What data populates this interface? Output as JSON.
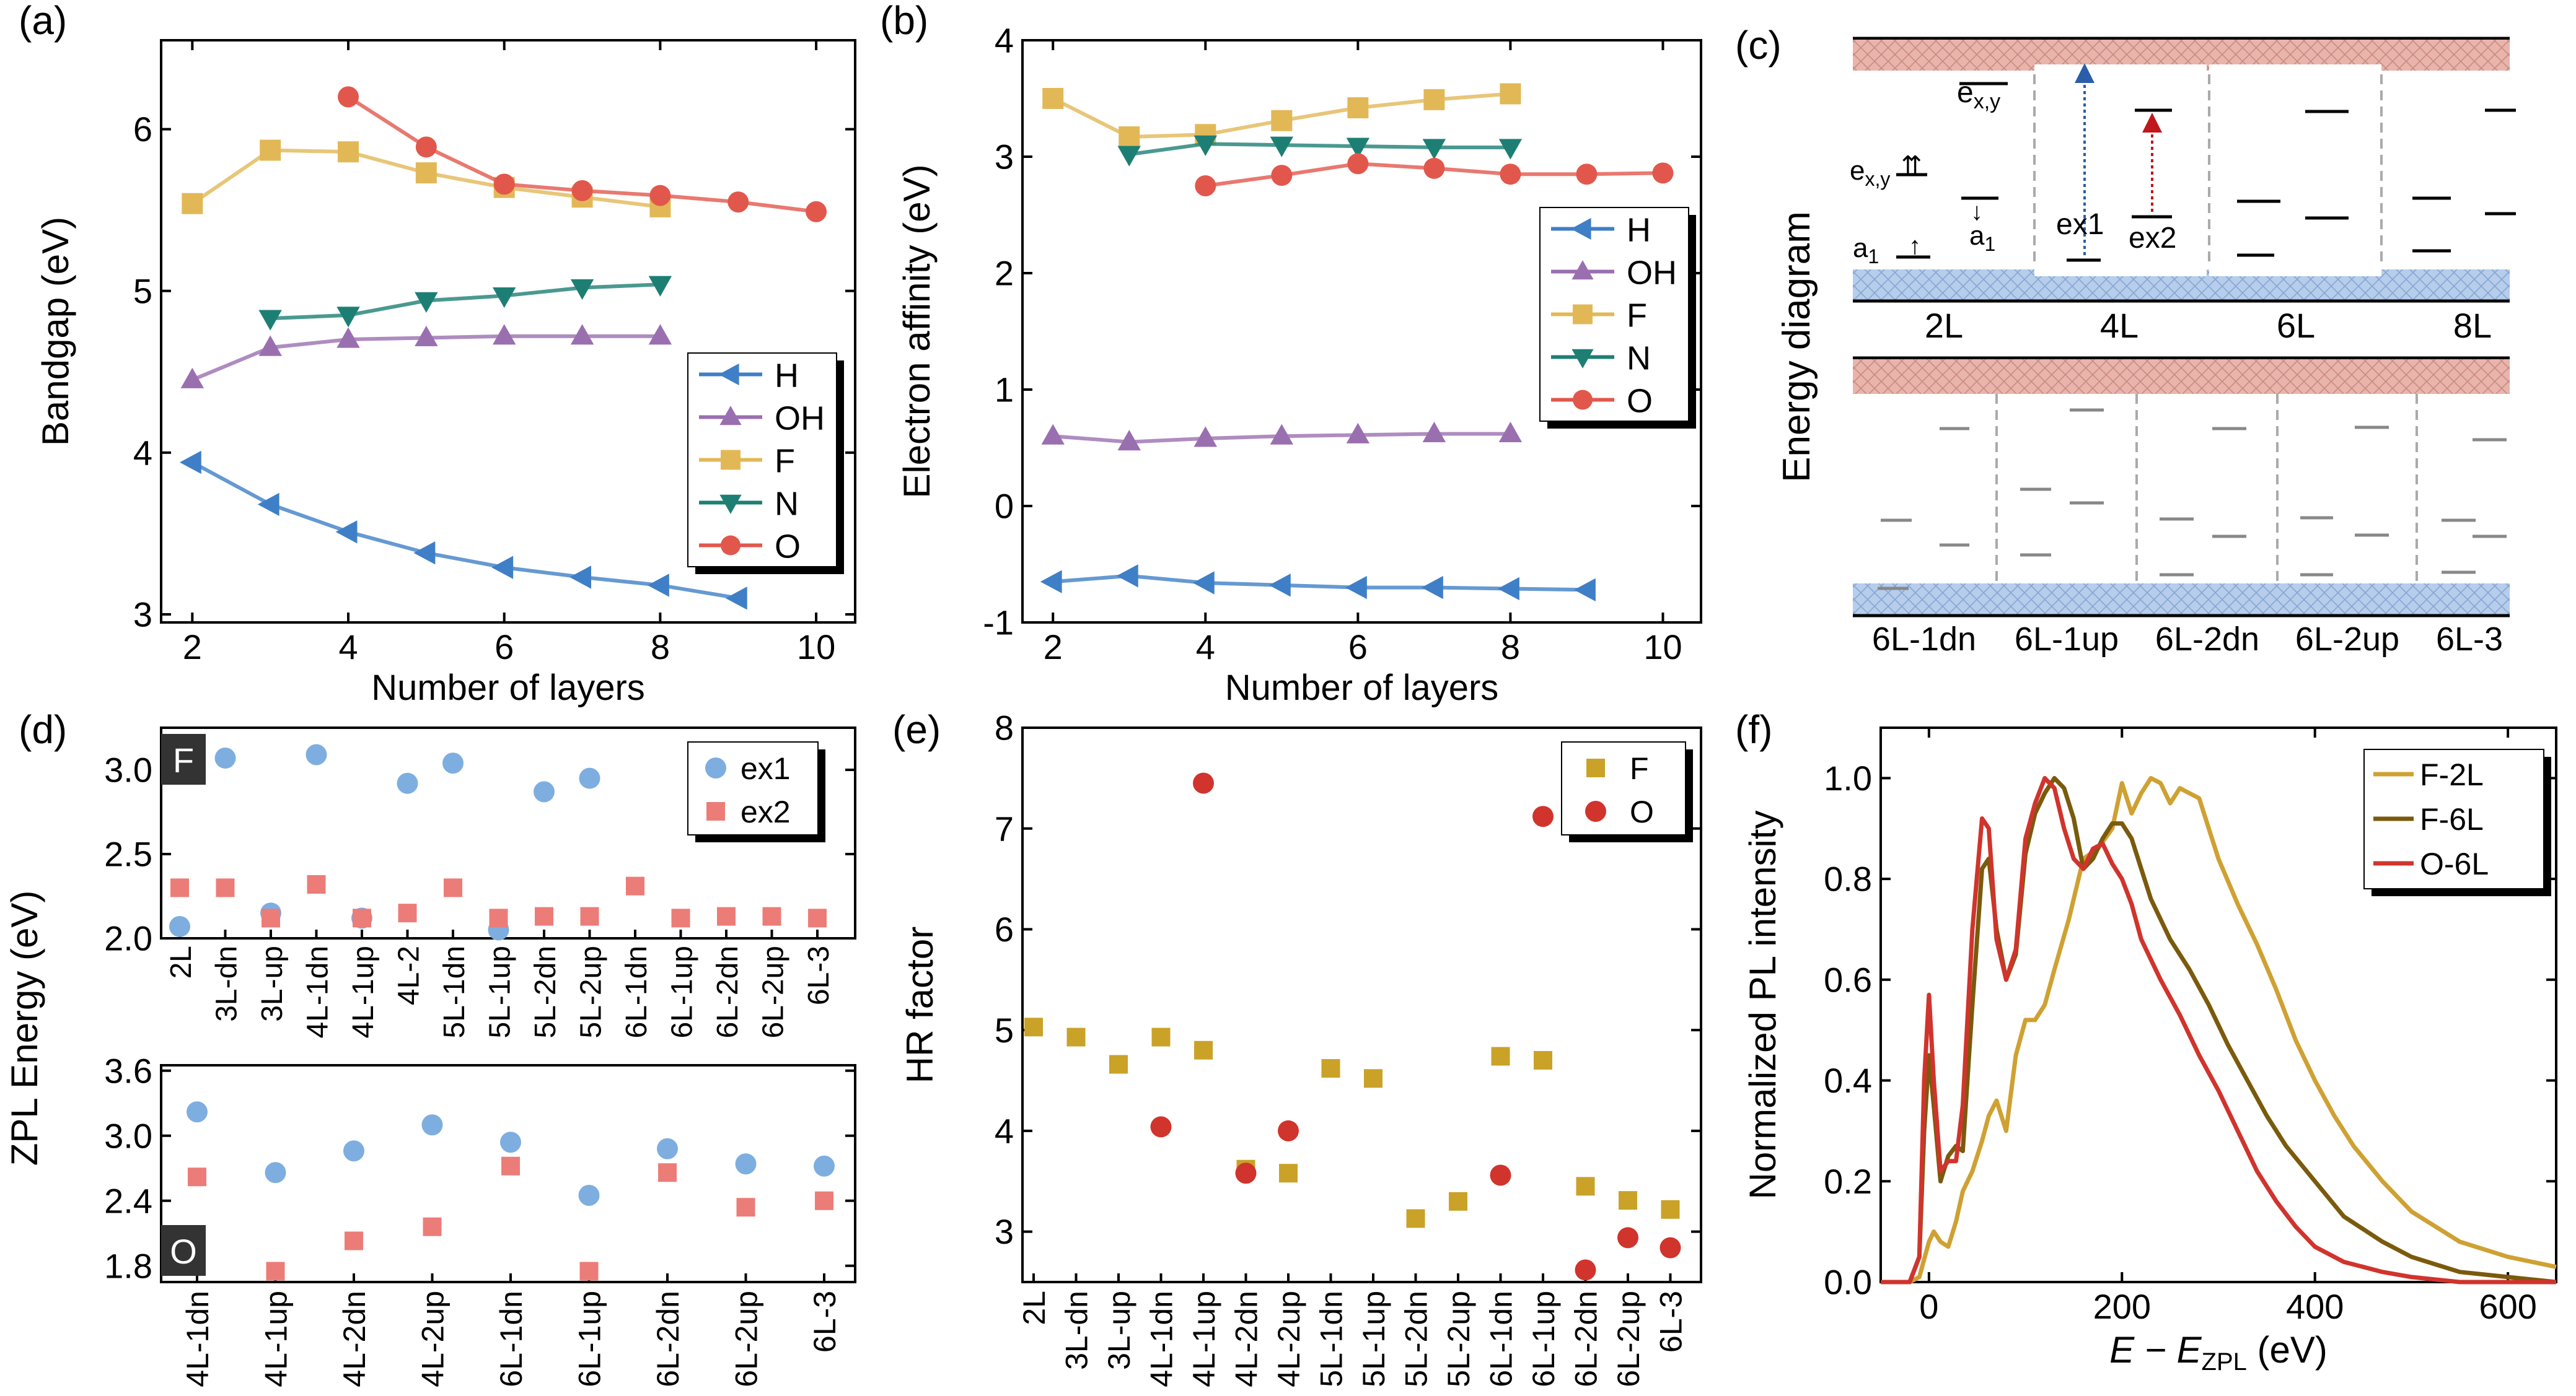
{
  "colors": {
    "H": "#3f7fc7",
    "OH": "#9a6fb0",
    "F": "#e2b857",
    "N": "#1d7f74",
    "O": "#e2574c",
    "ex1": "#7eaee0",
    "ex2": "#ec7c78",
    "gold": "#c9a227",
    "red": "#d0342c",
    "F2L": "#cfa133",
    "F6L": "#7a5a0c",
    "O6L": "#d0342c",
    "blue": "#2b5ea8",
    "darkred": "#c0161c",
    "cb": "#e8b4ac",
    "vb": "#b6cdeb"
  },
  "chart_data": [
    {
      "id": "a",
      "panel_label": "(a)",
      "type": "line",
      "xlabel": "Number of layers",
      "ylabel": "Bandgap (eV)",
      "xlim": [
        1.6,
        10.5
      ],
      "ylim": [
        2.95,
        6.55
      ],
      "xticks": [
        2,
        4,
        6,
        8,
        10
      ],
      "yticks": [
        3,
        4,
        5,
        6
      ],
      "xticklabels": [
        "2",
        "4",
        "6",
        "8",
        "10"
      ],
      "yticklabels": [
        "3",
        "4",
        "5",
        "6"
      ],
      "legend_position": "bottom-right",
      "series": [
        {
          "name": "H",
          "marker": "tri-left",
          "x": [
            2,
            3,
            4,
            5,
            6,
            7,
            8,
            9
          ],
          "y": [
            3.94,
            3.68,
            3.51,
            3.38,
            3.29,
            3.23,
            3.18,
            3.1
          ]
        },
        {
          "name": "OH",
          "marker": "tri-up",
          "x": [
            2,
            3,
            4,
            5,
            6,
            7,
            8
          ],
          "y": [
            4.45,
            4.65,
            4.7,
            4.71,
            4.72,
            4.72,
            4.72
          ]
        },
        {
          "name": "F",
          "marker": "square",
          "x": [
            2,
            3,
            4,
            5,
            6,
            7,
            8
          ],
          "y": [
            5.54,
            5.87,
            5.86,
            5.73,
            5.64,
            5.58,
            5.52
          ]
        },
        {
          "name": "N",
          "marker": "tri-down",
          "x": [
            3,
            4,
            5,
            6,
            7,
            8
          ],
          "y": [
            4.83,
            4.85,
            4.94,
            4.97,
            5.02,
            5.04
          ]
        },
        {
          "name": "O",
          "marker": "circle",
          "x": [
            4,
            5,
            6,
            7,
            8,
            9,
            10
          ],
          "y": [
            6.2,
            5.89,
            5.66,
            5.62,
            5.59,
            5.55,
            5.49
          ]
        }
      ]
    },
    {
      "id": "b",
      "panel_label": "(b)",
      "type": "line",
      "xlabel": "Number of layers",
      "ylabel": "Electron affinity (eV)",
      "xlim": [
        1.6,
        10.5
      ],
      "ylim": [
        -1,
        4
      ],
      "xticks": [
        2,
        4,
        6,
        8,
        10
      ],
      "yticks": [
        -1,
        0,
        1,
        2,
        3,
        4
      ],
      "xticklabels": [
        "2",
        "4",
        "6",
        "8",
        "10"
      ],
      "yticklabels": [
        "-1",
        "0",
        "1",
        "2",
        "3",
        "4"
      ],
      "legend_position": "center-right",
      "series": [
        {
          "name": "H",
          "marker": "tri-left",
          "x": [
            2,
            3,
            4,
            5,
            6,
            7,
            8,
            9
          ],
          "y": [
            -0.65,
            -0.6,
            -0.66,
            -0.68,
            -0.7,
            -0.7,
            -0.71,
            -0.72
          ]
        },
        {
          "name": "OH",
          "marker": "tri-up",
          "x": [
            2,
            3,
            4,
            5,
            6,
            7,
            8
          ],
          "y": [
            0.6,
            0.55,
            0.58,
            0.6,
            0.61,
            0.62,
            0.62
          ]
        },
        {
          "name": "F",
          "marker": "square",
          "x": [
            2,
            3,
            4,
            5,
            6,
            7,
            8
          ],
          "y": [
            3.5,
            3.17,
            3.19,
            3.31,
            3.42,
            3.49,
            3.54
          ]
        },
        {
          "name": "N",
          "marker": "tri-down",
          "x": [
            3,
            4,
            5,
            6,
            7,
            8
          ],
          "y": [
            3.02,
            3.11,
            3.1,
            3.09,
            3.08,
            3.08
          ]
        },
        {
          "name": "O",
          "marker": "circle",
          "x": [
            4,
            5,
            6,
            7,
            8,
            9,
            10
          ],
          "y": [
            2.75,
            2.84,
            2.94,
            2.9,
            2.85,
            2.85,
            2.86
          ]
        }
      ]
    },
    {
      "id": "d_top",
      "panel_label": "(d)",
      "type": "scatter",
      "badge": "F",
      "ylim": [
        2.0,
        3.25
      ],
      "yticks": [
        2.0,
        2.5,
        3.0
      ],
      "yticklabels": [
        "2.0",
        "2.5",
        "3.0"
      ],
      "categories": [
        "2L",
        "3L-dn",
        "3L-up",
        "4L-1dn",
        "4L-1up",
        "4L-2",
        "5L-1dn",
        "5L-1up",
        "5L-2dn",
        "5L-2up",
        "6L-1dn",
        "6L-1up",
        "6L-2dn",
        "6L-2up",
        "6L-3"
      ],
      "legend_position": "top-right",
      "series": [
        {
          "name": "ex1",
          "marker": "circle",
          "values": [
            2.07,
            3.07,
            2.15,
            3.09,
            2.12,
            2.92,
            3.04,
            2.05,
            2.87,
            2.95,
            null,
            null,
            null,
            null,
            null
          ]
        },
        {
          "name": "ex2",
          "marker": "square",
          "values": [
            2.3,
            2.3,
            2.12,
            2.32,
            2.12,
            2.15,
            2.3,
            2.12,
            2.13,
            2.13,
            2.31,
            2.12,
            2.13,
            2.13,
            2.12
          ]
        }
      ]
    },
    {
      "id": "d_bottom",
      "type": "scatter",
      "badge": "O",
      "ylabel": "ZPL Energy (eV)",
      "ylim": [
        1.65,
        3.65
      ],
      "yticks": [
        1.8,
        2.4,
        3.0,
        3.6
      ],
      "yticklabels": [
        "1.8",
        "2.4",
        "3.0",
        "3.6"
      ],
      "categories": [
        "4L-1dn",
        "4L-1up",
        "4L-2dn",
        "4L-2up",
        "6L-1dn",
        "6L-1up",
        "6L-2dn",
        "6L-2up",
        "6L-3"
      ],
      "series": [
        {
          "name": "ex1",
          "marker": "circle",
          "values": [
            3.22,
            2.66,
            2.86,
            3.1,
            2.94,
            2.45,
            2.88,
            2.74,
            2.72
          ]
        },
        {
          "name": "ex2",
          "marker": "square",
          "values": [
            2.62,
            1.75,
            2.03,
            2.16,
            2.72,
            1.75,
            2.66,
            2.34,
            2.4
          ]
        }
      ]
    },
    {
      "id": "e",
      "panel_label": "(e)",
      "type": "scatter",
      "ylabel": "HR factor",
      "ylim": [
        2.5,
        8
      ],
      "yticks": [
        3,
        4,
        5,
        6,
        7,
        8
      ],
      "yticklabels": [
        "3",
        "4",
        "5",
        "6",
        "7",
        "8"
      ],
      "categories": [
        "2L",
        "3L-dn",
        "3L-up",
        "4L-1dn",
        "4L-1up",
        "4L-2dn",
        "4L-2up",
        "5L-1dn",
        "5L-1up",
        "5L-2dn",
        "5L-2up",
        "6L-1dn",
        "6L-1up",
        "6L-2dn",
        "6L-2up",
        "6L-3"
      ],
      "legend_position": "top-right",
      "series": [
        {
          "name": "F",
          "marker": "square",
          "values": [
            5.03,
            4.93,
            4.66,
            4.93,
            4.8,
            3.62,
            3.58,
            4.62,
            4.52,
            3.13,
            3.3,
            4.74,
            4.7,
            3.45,
            3.31,
            3.22
          ]
        },
        {
          "name": "O",
          "marker": "circle",
          "values": [
            null,
            null,
            null,
            4.04,
            7.45,
            3.58,
            4.0,
            null,
            null,
            null,
            null,
            3.56,
            7.12,
            2.62,
            2.94,
            2.84
          ]
        }
      ]
    },
    {
      "id": "f",
      "panel_label": "(f)",
      "type": "line",
      "xlabel_main": "E − E",
      "xlabel_sub": "ZPL",
      "xlabel_unit": " (eV)",
      "ylabel": "Normalized PL intensity",
      "xlim": [
        -50,
        650
      ],
      "ylim": [
        0,
        1.1
      ],
      "xticks": [
        0,
        200,
        400,
        600
      ],
      "yticks": [
        0,
        0.2,
        0.4,
        0.6,
        0.8,
        1.0
      ],
      "xticklabels": [
        "0",
        "200",
        "400",
        "600"
      ],
      "yticklabels": [
        "0.0",
        "0.2",
        "0.4",
        "0.6",
        "0.8",
        "1.0"
      ],
      "legend_position": "top-right",
      "series": [
        {
          "name": "F-2L",
          "x": [
            -50,
            -20,
            -10,
            0,
            5,
            12,
            20,
            28,
            35,
            45,
            55,
            62,
            70,
            80,
            90,
            100,
            110,
            120,
            130,
            145,
            160,
            175,
            190,
            200,
            210,
            220,
            230,
            240,
            250,
            260,
            270,
            280,
            290,
            300,
            320,
            340,
            360,
            380,
            400,
            420,
            440,
            470,
            500,
            550,
            600,
            650
          ],
          "y": [
            0,
            0,
            0.01,
            0.08,
            0.1,
            0.08,
            0.07,
            0.12,
            0.18,
            0.22,
            0.28,
            0.33,
            0.36,
            0.3,
            0.45,
            0.52,
            0.52,
            0.55,
            0.62,
            0.72,
            0.84,
            0.86,
            0.9,
            0.99,
            0.93,
            0.97,
            1.0,
            0.99,
            0.95,
            0.98,
            0.97,
            0.96,
            0.9,
            0.84,
            0.75,
            0.67,
            0.58,
            0.48,
            0.4,
            0.33,
            0.27,
            0.2,
            0.14,
            0.08,
            0.05,
            0.03
          ]
        },
        {
          "name": "F-6L",
          "x": [
            -50,
            -20,
            -10,
            -5,
            0,
            5,
            12,
            20,
            28,
            35,
            45,
            55,
            62,
            70,
            80,
            90,
            100,
            110,
            120,
            130,
            140,
            150,
            160,
            170,
            180,
            190,
            200,
            210,
            220,
            230,
            250,
            270,
            290,
            310,
            330,
            350,
            370,
            400,
            430,
            470,
            500,
            550,
            600,
            650
          ],
          "y": [
            0,
            0,
            0.05,
            0.3,
            0.45,
            0.35,
            0.2,
            0.25,
            0.27,
            0.26,
            0.55,
            0.82,
            0.84,
            0.7,
            0.6,
            0.65,
            0.85,
            0.93,
            0.97,
            1.0,
            0.98,
            0.92,
            0.82,
            0.84,
            0.88,
            0.91,
            0.91,
            0.88,
            0.82,
            0.76,
            0.68,
            0.62,
            0.55,
            0.47,
            0.4,
            0.33,
            0.27,
            0.2,
            0.13,
            0.08,
            0.05,
            0.02,
            0.01,
            0.0
          ]
        },
        {
          "name": "O-6L",
          "x": [
            -50,
            -20,
            -10,
            -5,
            0,
            5,
            12,
            20,
            28,
            35,
            45,
            55,
            62,
            70,
            80,
            90,
            100,
            110,
            120,
            130,
            140,
            150,
            160,
            170,
            180,
            190,
            200,
            210,
            220,
            240,
            260,
            280,
            300,
            320,
            340,
            360,
            380,
            400,
            430,
            470,
            500,
            550,
            600,
            650
          ],
          "y": [
            0,
            0,
            0.05,
            0.4,
            0.57,
            0.4,
            0.22,
            0.24,
            0.24,
            0.35,
            0.7,
            0.92,
            0.9,
            0.68,
            0.6,
            0.66,
            0.88,
            0.95,
            1.0,
            0.98,
            0.9,
            0.84,
            0.82,
            0.86,
            0.87,
            0.83,
            0.8,
            0.75,
            0.68,
            0.6,
            0.53,
            0.45,
            0.38,
            0.3,
            0.22,
            0.16,
            0.11,
            0.07,
            0.04,
            0.02,
            0.01,
            0.0,
            0.0,
            0.0
          ]
        }
      ]
    }
  ],
  "panel_c": {
    "label": "(c)",
    "ylabel": "Energy diagram",
    "top_columns": [
      "2L",
      "4L",
      "6L",
      "8L"
    ],
    "bottom_columns": [
      "6L-1dn",
      "6L-1up",
      "6L-2dn",
      "6L-2up",
      "6L-3"
    ],
    "state_ex_xy": "e",
    "state_ex_xy_sub": "x,y",
    "state_ex_xy_excited": "e",
    "state_ex_xy_excited_sub": "x,y",
    "state_a1": "a",
    "state_a1_sub": "1",
    "state_a1_prime": "a",
    "state_a1_prime_sub": "1",
    "ex1": "ex1",
    "ex2": "ex2"
  }
}
